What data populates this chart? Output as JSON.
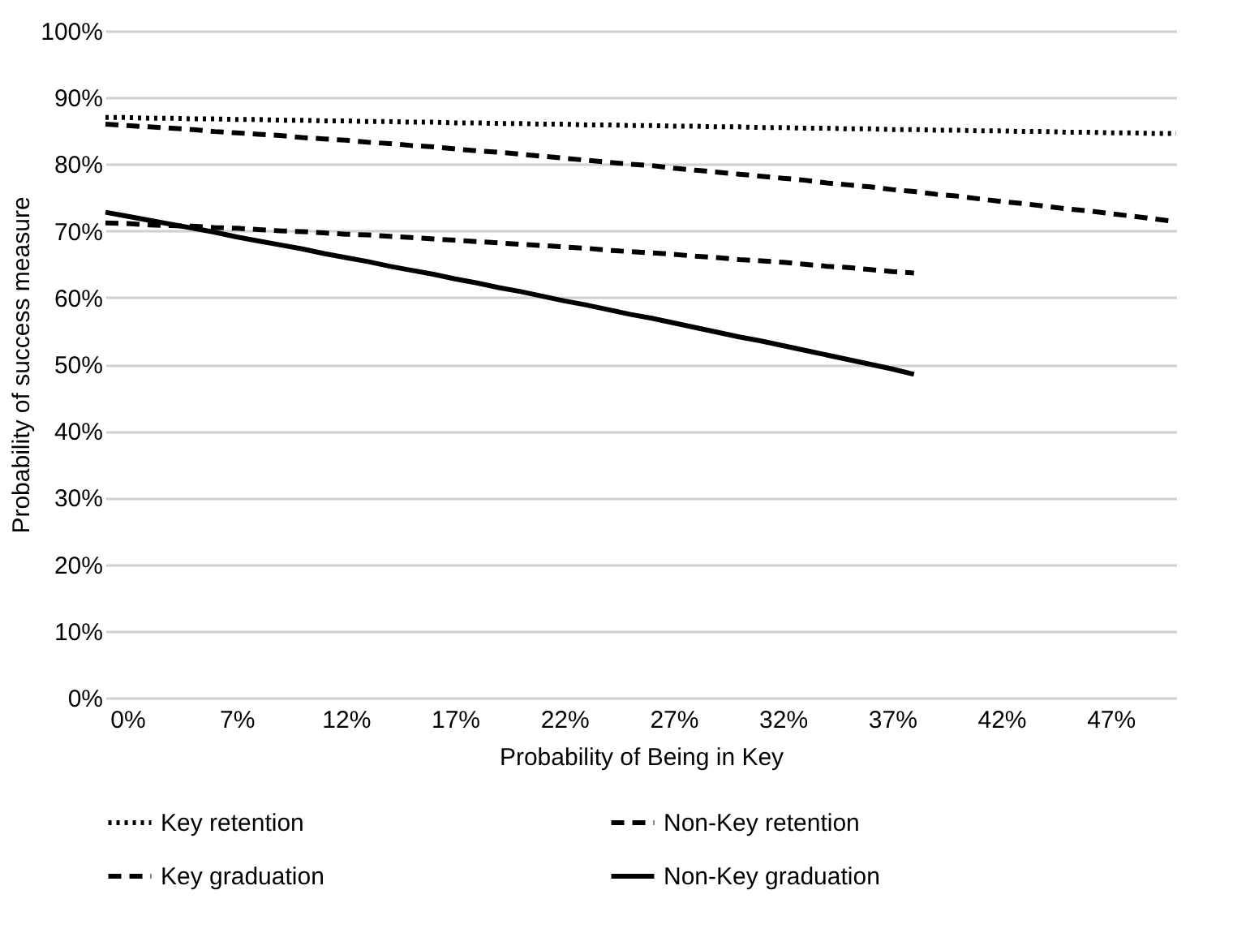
{
  "chart_data": {
    "type": "line",
    "xlabel": "Probability of Being in Key",
    "ylabel": "Probability of success measure",
    "categories": [
      null,
      "0%",
      null,
      null,
      null,
      null,
      "7%",
      null,
      null,
      null,
      null,
      "12%",
      null,
      null,
      null,
      null,
      "17%",
      null,
      null,
      null,
      null,
      "22%",
      null,
      null,
      null,
      null,
      "27%",
      null,
      null,
      null,
      null,
      "32%",
      null,
      null,
      null,
      null,
      "37%",
      null,
      null,
      null,
      null,
      "42%",
      null,
      null,
      null,
      null,
      "47%",
      null,
      null,
      null
    ],
    "ylim": [
      0,
      100
    ],
    "yticks": [
      {
        "value": 0,
        "label": "0%"
      },
      {
        "value": 10,
        "label": "10%"
      },
      {
        "value": 20,
        "label": "20%"
      },
      {
        "value": 30,
        "label": "30%"
      },
      {
        "value": 40,
        "label": "40%"
      },
      {
        "value": 50,
        "label": "50%"
      },
      {
        "value": 60,
        "label": "60%"
      },
      {
        "value": 70,
        "label": "70%"
      },
      {
        "value": 80,
        "label": "80%"
      },
      {
        "value": 90,
        "label": "90%"
      },
      {
        "value": 100,
        "label": "100%"
      }
    ],
    "grid": "y",
    "legend": "bottom",
    "marker": "none",
    "series": [
      {
        "name": "Key retention",
        "color": "#000000",
        "line_style": "dotted",
        "values": [
          87.0,
          87.0,
          86.9,
          86.9,
          86.8,
          86.8,
          86.7,
          86.7,
          86.6,
          86.6,
          86.5,
          86.5,
          86.4,
          86.4,
          86.3,
          86.3,
          86.2,
          86.2,
          86.1,
          86.1,
          86.0,
          86.0,
          85.9,
          85.9,
          85.8,
          85.8,
          85.7,
          85.7,
          85.6,
          85.6,
          85.5,
          85.5,
          85.4,
          85.4,
          85.3,
          85.3,
          85.2,
          85.2,
          85.1,
          85.1,
          85.0,
          85.0,
          84.9,
          84.9,
          84.8,
          84.8,
          84.7,
          84.7,
          84.6,
          84.6
        ]
      },
      {
        "name": "Non-Key retention",
        "color": "#000000",
        "line_style": "dashed",
        "values": [
          86.0,
          85.8,
          85.6,
          85.4,
          85.2,
          84.9,
          84.7,
          84.5,
          84.3,
          84.0,
          83.8,
          83.6,
          83.3,
          83.1,
          82.8,
          82.6,
          82.3,
          82.0,
          81.8,
          81.5,
          81.2,
          80.9,
          80.6,
          80.3,
          80.0,
          79.8,
          79.4,
          79.1,
          78.8,
          78.5,
          78.2,
          77.9,
          77.6,
          77.2,
          76.9,
          76.6,
          76.2,
          75.9,
          75.5,
          75.2,
          74.8,
          74.4,
          74.1,
          73.7,
          73.3,
          73.0,
          72.6,
          72.2,
          71.8,
          71.4
        ]
      },
      {
        "name": "Key graduation",
        "color": "#000000",
        "line_style": "dashed",
        "values": [
          71.2,
          71.1,
          70.9,
          70.8,
          70.7,
          70.5,
          70.4,
          70.2,
          70.0,
          69.9,
          69.7,
          69.5,
          69.4,
          69.2,
          69.0,
          68.8,
          68.6,
          68.4,
          68.2,
          68.0,
          67.8,
          67.6,
          67.4,
          67.1,
          66.9,
          66.7,
          66.5,
          66.2,
          66.0,
          65.7,
          65.5,
          65.3,
          65.0,
          64.7,
          64.5,
          64.2,
          63.9,
          63.7,
          null,
          null,
          null,
          null,
          null,
          null,
          null,
          null,
          null,
          null,
          null,
          null
        ]
      },
      {
        "name": "Non-Key graduation",
        "color": "#000000",
        "line_style": "solid",
        "values": [
          72.8,
          72.2,
          71.6,
          71.0,
          70.4,
          69.8,
          69.1,
          68.5,
          67.9,
          67.3,
          66.6,
          66.0,
          65.4,
          64.7,
          64.1,
          63.5,
          62.8,
          62.2,
          61.5,
          60.9,
          60.2,
          59.5,
          58.9,
          58.2,
          57.5,
          56.9,
          56.2,
          55.5,
          54.8,
          54.1,
          53.5,
          52.8,
          52.1,
          51.4,
          50.7,
          50.0,
          49.3,
          48.5,
          null,
          null,
          null,
          null,
          null,
          null,
          null,
          null,
          null,
          null,
          null,
          null
        ]
      }
    ]
  }
}
